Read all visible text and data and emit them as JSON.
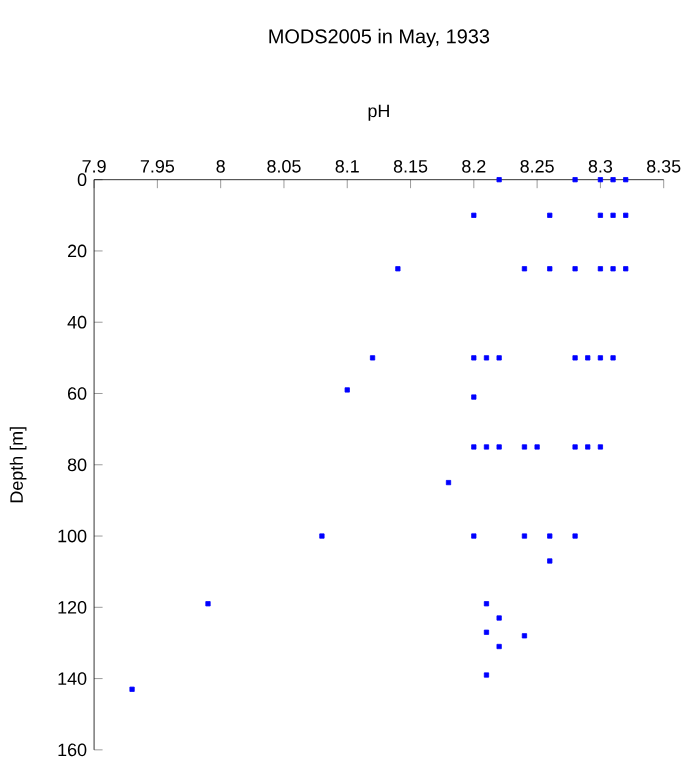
{
  "chart_data": {
    "type": "scatter",
    "title": "MODS2005 in May, 1933",
    "xlabel": "pH",
    "ylabel": "Depth [m]",
    "xlim": [
      7.9,
      8.35
    ],
    "xticks": [
      7.9,
      7.95,
      8,
      8.05,
      8.1,
      8.15,
      8.2,
      8.25,
      8.3,
      8.35
    ],
    "ylim": [
      160,
      0
    ],
    "yticks": [
      0,
      20,
      40,
      60,
      80,
      100,
      120,
      140,
      160
    ],
    "marker": "square",
    "series": [
      {
        "color": "#0000ff",
        "x": [
          8.22,
          8.28,
          8.3,
          8.31,
          8.32,
          8.2,
          8.26,
          8.3,
          8.31,
          8.32,
          8.14,
          8.24,
          8.26,
          8.28,
          8.3,
          8.31,
          8.32,
          8.12,
          8.2,
          8.21,
          8.22,
          8.28,
          8.29,
          8.3,
          8.31,
          8.1,
          8.2,
          8.2,
          8.21,
          8.22,
          8.24,
          8.25,
          8.28,
          8.29,
          8.3,
          8.18,
          8.08,
          8.2,
          8.24,
          8.26,
          8.28,
          8.26,
          7.99,
          8.21,
          8.22,
          8.21,
          8.24,
          8.22,
          8.21,
          7.93
        ],
        "values": [
          0,
          0,
          0,
          0,
          0,
          10,
          10,
          10,
          10,
          10,
          25,
          25,
          25,
          25,
          25,
          25,
          25,
          50,
          50,
          50,
          50,
          50,
          50,
          50,
          50,
          59,
          61,
          75,
          75,
          75,
          75,
          75,
          75,
          75,
          75,
          85,
          100,
          100,
          100,
          100,
          100,
          107,
          119,
          119,
          123,
          127,
          128,
          131,
          139,
          143
        ]
      }
    ]
  }
}
